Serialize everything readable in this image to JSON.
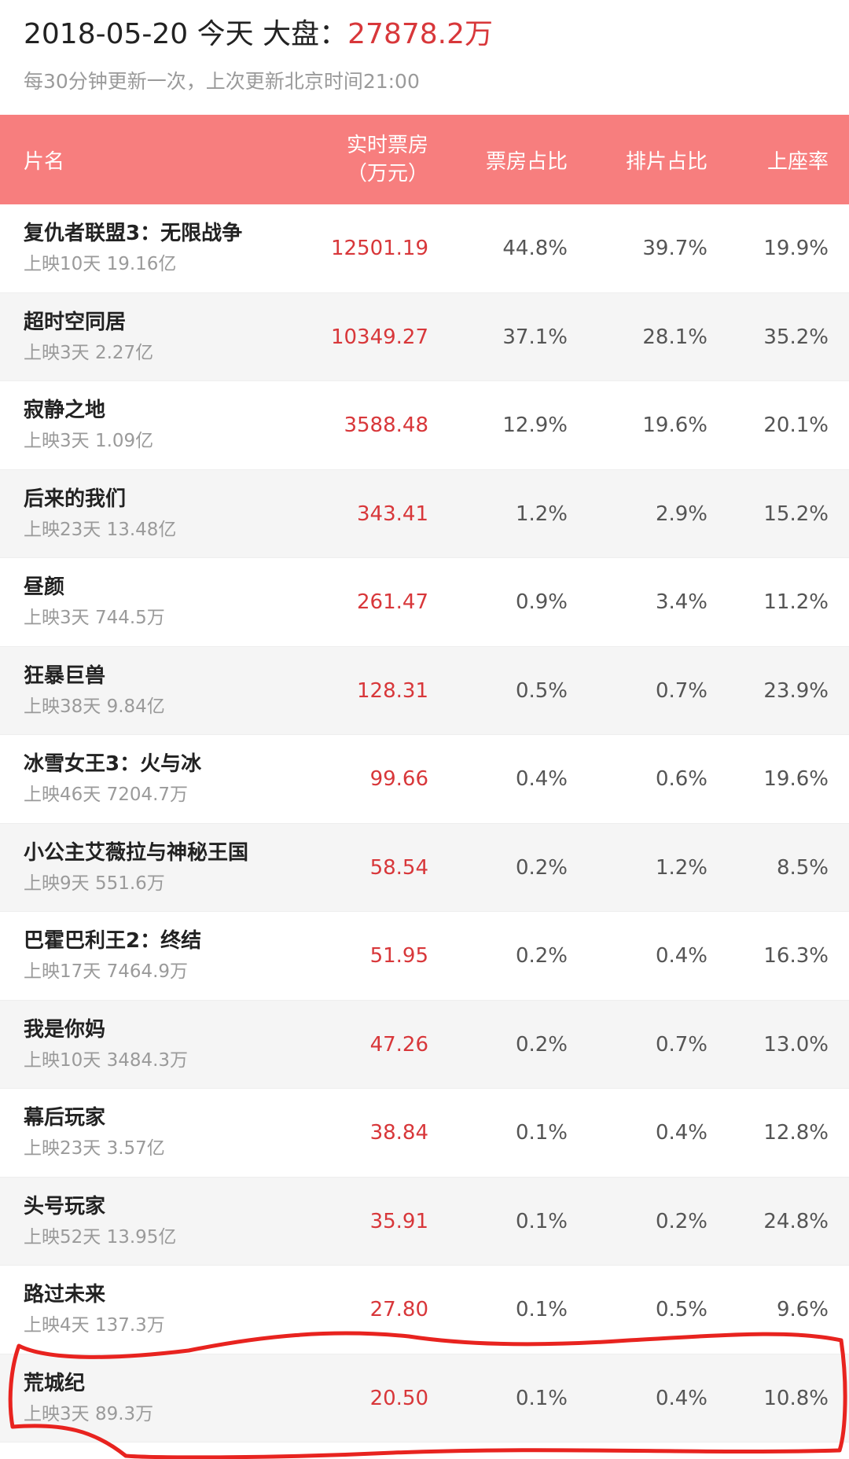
{
  "header": {
    "date": "2018-05-20",
    "today": "今天",
    "market_label": "大盘：",
    "market_total": "27878.2万",
    "update_note": "每30分钟更新一次，上次更新北京时间21:00"
  },
  "columns": {
    "name": "片名",
    "box_office_line1": "实时票房",
    "box_office_line2": "（万元）",
    "box_share": "票房占比",
    "screen_share": "排片占比",
    "seat_rate": "上座率"
  },
  "colors": {
    "header_bg": "#f77e7e",
    "accent_red": "#d8373a",
    "annotation": "#e8231f"
  },
  "rows": [
    {
      "name": "复仇者联盟3：无限战争",
      "meta": "上映10天  19.16亿",
      "box_office": "12501.19",
      "box_share": "44.8%",
      "screen_share": "39.7%",
      "seat_rate": "19.9%"
    },
    {
      "name": "超时空同居",
      "meta": "上映3天  2.27亿",
      "box_office": "10349.27",
      "box_share": "37.1%",
      "screen_share": "28.1%",
      "seat_rate": "35.2%"
    },
    {
      "name": "寂静之地",
      "meta": "上映3天  1.09亿",
      "box_office": "3588.48",
      "box_share": "12.9%",
      "screen_share": "19.6%",
      "seat_rate": "20.1%"
    },
    {
      "name": "后来的我们",
      "meta": "上映23天  13.48亿",
      "box_office": "343.41",
      "box_share": "1.2%",
      "screen_share": "2.9%",
      "seat_rate": "15.2%"
    },
    {
      "name": "昼颜",
      "meta": "上映3天  744.5万",
      "box_office": "261.47",
      "box_share": "0.9%",
      "screen_share": "3.4%",
      "seat_rate": "11.2%"
    },
    {
      "name": "狂暴巨兽",
      "meta": "上映38天  9.84亿",
      "box_office": "128.31",
      "box_share": "0.5%",
      "screen_share": "0.7%",
      "seat_rate": "23.9%"
    },
    {
      "name": "冰雪女王3：火与冰",
      "meta": "上映46天  7204.7万",
      "box_office": "99.66",
      "box_share": "0.4%",
      "screen_share": "0.6%",
      "seat_rate": "19.6%"
    },
    {
      "name": "小公主艾薇拉与神秘王国",
      "meta": "上映9天  551.6万",
      "box_office": "58.54",
      "box_share": "0.2%",
      "screen_share": "1.2%",
      "seat_rate": "8.5%"
    },
    {
      "name": "巴霍巴利王2：终结",
      "meta": "上映17天  7464.9万",
      "box_office": "51.95",
      "box_share": "0.2%",
      "screen_share": "0.4%",
      "seat_rate": "16.3%"
    },
    {
      "name": "我是你妈",
      "meta": "上映10天  3484.3万",
      "box_office": "47.26",
      "box_share": "0.2%",
      "screen_share": "0.7%",
      "seat_rate": "13.0%"
    },
    {
      "name": "幕后玩家",
      "meta": "上映23天  3.57亿",
      "box_office": "38.84",
      "box_share": "0.1%",
      "screen_share": "0.4%",
      "seat_rate": "12.8%"
    },
    {
      "name": "头号玩家",
      "meta": "上映52天  13.95亿",
      "box_office": "35.91",
      "box_share": "0.1%",
      "screen_share": "0.2%",
      "seat_rate": "24.8%"
    },
    {
      "name": "路过未来",
      "meta": "上映4天  137.3万",
      "box_office": "27.80",
      "box_share": "0.1%",
      "screen_share": "0.5%",
      "seat_rate": "9.6%"
    },
    {
      "name": "荒城纪",
      "meta": "上映3天  89.3万",
      "box_office": "20.50",
      "box_share": "0.1%",
      "screen_share": "0.4%",
      "seat_rate": "10.8%"
    }
  ]
}
